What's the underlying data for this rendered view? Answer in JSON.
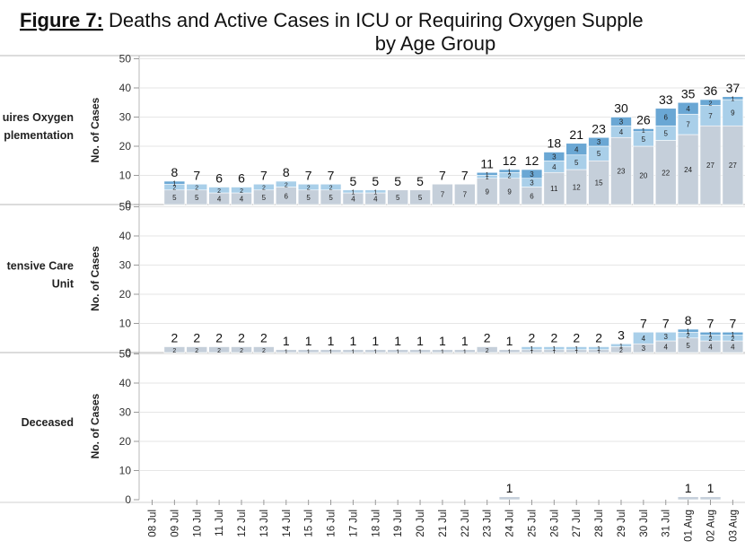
{
  "title_prefix": "Figure 7:",
  "title_line1": " Deaths and Active Cases in ICU or Requiring Oxygen Supple",
  "title_line2": "by Age Group",
  "y_axis_label": "No. of Cases",
  "chart_data": {
    "type": "bar",
    "stacked": true,
    "ylim": [
      0,
      50
    ],
    "yticks": [
      0,
      10,
      20,
      30,
      40,
      50
    ],
    "categories": [
      "08 Jul",
      "09 Jul",
      "10 Jul",
      "11 Jul",
      "12 Jul",
      "13 Jul",
      "14 Jul",
      "15 Jul",
      "16 Jul",
      "17 Jul",
      "18 Jul",
      "19 Jul",
      "20 Jul",
      "21 Jul",
      "22 Jul",
      "23 Jul",
      "24 Jul",
      "25 Jul",
      "26 Jul",
      "27 Jul",
      "28 Jul",
      "29 Jul",
      "30 Jul",
      "31 Jul",
      "01 Aug",
      "02 Aug",
      "03 Aug"
    ],
    "colors": [
      "#c5cfda",
      "#a9cfe9",
      "#6aa7d4",
      "#3f7fb8"
    ],
    "panels": [
      {
        "name": "Requires Oxygen Supplementation",
        "label_lines": [
          "uires Oxygen",
          "plementation"
        ],
        "totals": [
          null,
          8,
          7,
          6,
          6,
          7,
          8,
          7,
          7,
          5,
          5,
          5,
          5,
          7,
          7,
          11,
          12,
          12,
          18,
          21,
          23,
          30,
          26,
          33,
          35,
          36,
          37
        ],
        "segments": [
          [
            null,
            null,
            null,
            null
          ],
          [
            5,
            2,
            1,
            null
          ],
          [
            5,
            2,
            null,
            null
          ],
          [
            4,
            2,
            null,
            null
          ],
          [
            4,
            2,
            null,
            null
          ],
          [
            5,
            2,
            null,
            null
          ],
          [
            6,
            2,
            null,
            null
          ],
          [
            5,
            2,
            null,
            null
          ],
          [
            5,
            2,
            null,
            null
          ],
          [
            4,
            1,
            null,
            null
          ],
          [
            4,
            1,
            null,
            null
          ],
          [
            5,
            null,
            null,
            null
          ],
          [
            5,
            null,
            null,
            null
          ],
          [
            7,
            null,
            null,
            null
          ],
          [
            7,
            null,
            null,
            null
          ],
          [
            9,
            1,
            1,
            null
          ],
          [
            9,
            2,
            1,
            null
          ],
          [
            6,
            3,
            3,
            null
          ],
          [
            11,
            4,
            3,
            null
          ],
          [
            12,
            5,
            4,
            null
          ],
          [
            15,
            5,
            3,
            null
          ],
          [
            23,
            4,
            3,
            null
          ],
          [
            20,
            5,
            1,
            null
          ],
          [
            22,
            5,
            6,
            null
          ],
          [
            24,
            7,
            4,
            null
          ],
          [
            27,
            7,
            2,
            null
          ],
          [
            27,
            9,
            1,
            null
          ]
        ]
      },
      {
        "name": "Intensive Care Unit",
        "label_lines": [
          "tensive Care",
          "Unit"
        ],
        "totals": [
          null,
          2,
          2,
          2,
          2,
          2,
          1,
          1,
          1,
          1,
          1,
          1,
          1,
          1,
          1,
          2,
          1,
          2,
          2,
          2,
          2,
          3,
          7,
          7,
          8,
          7,
          7
        ],
        "segments": [
          [
            null,
            null,
            null,
            null
          ],
          [
            2,
            null,
            null,
            null
          ],
          [
            2,
            null,
            null,
            null
          ],
          [
            2,
            null,
            null,
            null
          ],
          [
            2,
            null,
            null,
            null
          ],
          [
            2,
            null,
            null,
            null
          ],
          [
            1,
            null,
            null,
            null
          ],
          [
            1,
            null,
            null,
            null
          ],
          [
            1,
            null,
            null,
            null
          ],
          [
            1,
            null,
            null,
            null
          ],
          [
            1,
            null,
            null,
            null
          ],
          [
            1,
            null,
            null,
            null
          ],
          [
            1,
            null,
            null,
            null
          ],
          [
            1,
            null,
            null,
            null
          ],
          [
            1,
            null,
            null,
            null
          ],
          [
            2,
            null,
            null,
            null
          ],
          [
            1,
            null,
            null,
            null
          ],
          [
            1,
            1,
            null,
            null
          ],
          [
            1,
            1,
            null,
            null
          ],
          [
            1,
            1,
            null,
            null
          ],
          [
            1,
            1,
            null,
            null
          ],
          [
            2,
            1,
            null,
            null
          ],
          [
            3,
            4,
            null,
            null
          ],
          [
            4,
            3,
            null,
            null
          ],
          [
            5,
            2,
            1,
            null
          ],
          [
            4,
            2,
            1,
            null
          ],
          [
            4,
            2,
            1,
            null
          ]
        ]
      },
      {
        "name": "Deceased",
        "label_lines": [
          "Deceased"
        ],
        "totals": [
          null,
          null,
          null,
          null,
          null,
          null,
          null,
          null,
          null,
          null,
          null,
          null,
          null,
          null,
          null,
          null,
          1,
          null,
          null,
          null,
          null,
          null,
          null,
          null,
          1,
          1,
          null
        ],
        "segments": [
          [
            null,
            null,
            null,
            null
          ],
          [
            null,
            null,
            null,
            null
          ],
          [
            null,
            null,
            null,
            null
          ],
          [
            null,
            null,
            null,
            null
          ],
          [
            null,
            null,
            null,
            null
          ],
          [
            null,
            null,
            null,
            null
          ],
          [
            null,
            null,
            null,
            null
          ],
          [
            null,
            null,
            null,
            null
          ],
          [
            null,
            null,
            null,
            null
          ],
          [
            null,
            null,
            null,
            null
          ],
          [
            null,
            null,
            null,
            null
          ],
          [
            null,
            null,
            null,
            null
          ],
          [
            null,
            null,
            null,
            null
          ],
          [
            null,
            null,
            null,
            null
          ],
          [
            null,
            null,
            null,
            null
          ],
          [
            null,
            null,
            null,
            null
          ],
          [
            1,
            null,
            null,
            null
          ],
          [
            null,
            null,
            null,
            null
          ],
          [
            null,
            null,
            null,
            null
          ],
          [
            null,
            null,
            null,
            null
          ],
          [
            null,
            null,
            null,
            null
          ],
          [
            null,
            null,
            null,
            null
          ],
          [
            null,
            null,
            null,
            null
          ],
          [
            null,
            null,
            null,
            null
          ],
          [
            1,
            null,
            null,
            null
          ],
          [
            1,
            null,
            null,
            null
          ],
          [
            null,
            null,
            null,
            null
          ]
        ]
      }
    ]
  }
}
